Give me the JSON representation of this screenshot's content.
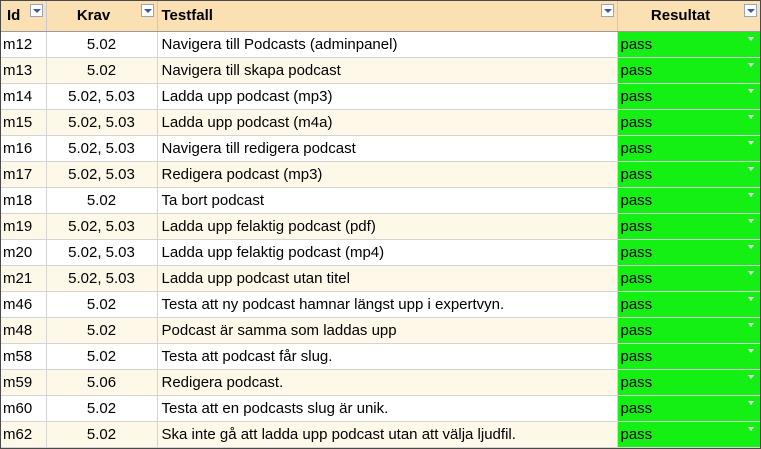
{
  "headers": {
    "id": "Id",
    "krav": "Krav",
    "testfall": "Testfall",
    "resultat": "Resultat"
  },
  "rows": [
    {
      "id": "m12",
      "krav": "5.02",
      "testfall": "Navigera till Podcasts (adminpanel)",
      "resultat": "pass"
    },
    {
      "id": "m13",
      "krav": "5.02",
      "testfall": "Navigera till skapa podcast",
      "resultat": "pass"
    },
    {
      "id": "m14",
      "krav": "5.02, 5.03",
      "testfall": "Ladda upp podcast (mp3)",
      "resultat": "pass"
    },
    {
      "id": "m15",
      "krav": "5.02, 5.03",
      "testfall": "Ladda upp podcast (m4a)",
      "resultat": "pass"
    },
    {
      "id": "m16",
      "krav": "5.02, 5.03",
      "testfall": "Navigera till redigera podcast",
      "resultat": "pass"
    },
    {
      "id": "m17",
      "krav": "5.02, 5.03",
      "testfall": "Redigera podcast (mp3)",
      "resultat": "pass"
    },
    {
      "id": "m18",
      "krav": "5.02",
      "testfall": "Ta bort podcast",
      "resultat": "pass"
    },
    {
      "id": "m19",
      "krav": "5.02, 5.03",
      "testfall": "Ladda upp felaktig podcast (pdf)",
      "resultat": "pass"
    },
    {
      "id": "m20",
      "krav": "5.02, 5.03",
      "testfall": "Ladda upp felaktig podcast (mp4)",
      "resultat": "pass"
    },
    {
      "id": "m21",
      "krav": "5.02, 5.03",
      "testfall": "Ladda upp podcast utan titel",
      "resultat": "pass"
    },
    {
      "id": "m46",
      "krav": "5.02",
      "testfall": "Testa att ny podcast hamnar längst upp i expertvyn.",
      "resultat": "pass"
    },
    {
      "id": "m48",
      "krav": "5.02",
      "testfall": "Podcast är samma som laddas upp",
      "resultat": "pass"
    },
    {
      "id": "m58",
      "krav": "5.02",
      "testfall": "Testa att podcast får slug.",
      "resultat": "pass"
    },
    {
      "id": "m59",
      "krav": "5.06",
      "testfall": "Redigera podcast.",
      "resultat": "pass"
    },
    {
      "id": "m60",
      "krav": "5.02",
      "testfall": "Testa att en podcasts slug är unik.",
      "resultat": "pass"
    },
    {
      "id": "m62",
      "krav": "5.02",
      "testfall": "Ska inte gå att ladda upp podcast utan att välja ljudfil.",
      "resultat": "pass"
    }
  ],
  "colors": {
    "header_bg": "#fbe0b4",
    "pass_bg": "#14f014",
    "row_alt_bg": "#fdf8e8"
  },
  "icons": {
    "filter": "chevron-down-icon",
    "dropdown": "dropdown-arrow-icon"
  }
}
